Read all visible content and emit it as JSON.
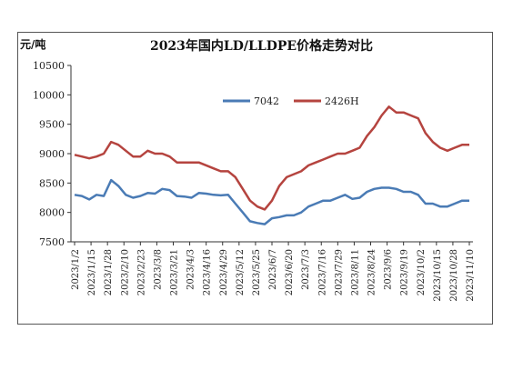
{
  "chart_data": {
    "type": "line",
    "title": "2023年国内LD/LLDPE价格走势对比",
    "unit_label": "元/吨",
    "ylim": [
      7500,
      10500
    ],
    "yticks": [
      7500,
      8000,
      8500,
      9000,
      9500,
      10000,
      10500
    ],
    "x_tick_labels": [
      "2023/1/2",
      "2023/1/15",
      "2023/1/28",
      "2023/2/10",
      "2023/2/23",
      "2023/3/8",
      "2023/3/21",
      "2023/4/3",
      "2023/4/16",
      "2023/4/29",
      "2023/5/12",
      "2023/5/25",
      "2023/6/7",
      "2023/6/20",
      "2023/7/3",
      "2023/7/16",
      "2023/7/29",
      "2023/8/11",
      "2023/8/24",
      "2023/9/6",
      "2023/9/19",
      "2023/10/2",
      "2023/10/15",
      "2023/10/28",
      "2023/11/10"
    ],
    "grid": false,
    "legend_position": "top-center",
    "series": [
      {
        "name": "7042",
        "color": "#4a7bb5",
        "values": [
          8300,
          8280,
          8220,
          8300,
          8280,
          8550,
          8450,
          8300,
          8250,
          8280,
          8330,
          8320,
          8400,
          8380,
          8280,
          8270,
          8250,
          8330,
          8320,
          8300,
          8290,
          8300,
          8150,
          8000,
          7850,
          7820,
          7800,
          7900,
          7920,
          7950,
          7950,
          8000,
          8100,
          8150,
          8200,
          8200,
          8250,
          8300,
          8230,
          8250,
          8350,
          8400,
          8420,
          8420,
          8400,
          8350,
          8350,
          8300,
          8150,
          8150,
          8100,
          8100,
          8150,
          8200,
          8200
        ]
      },
      {
        "name": "2426H",
        "color": "#b5443f",
        "values": [
          8980,
          8950,
          8920,
          8950,
          9000,
          9200,
          9150,
          9050,
          8950,
          8950,
          9050,
          9000,
          9000,
          8950,
          8850,
          8850,
          8850,
          8850,
          8800,
          8750,
          8700,
          8700,
          8600,
          8400,
          8200,
          8100,
          8050,
          8200,
          8450,
          8600,
          8650,
          8700,
          8800,
          8850,
          8900,
          8950,
          9000,
          9000,
          9050,
          9100,
          9300,
          9450,
          9650,
          9800,
          9700,
          9700,
          9650,
          9600,
          9350,
          9200,
          9100,
          9050,
          9100,
          9150,
          9150
        ]
      }
    ]
  }
}
